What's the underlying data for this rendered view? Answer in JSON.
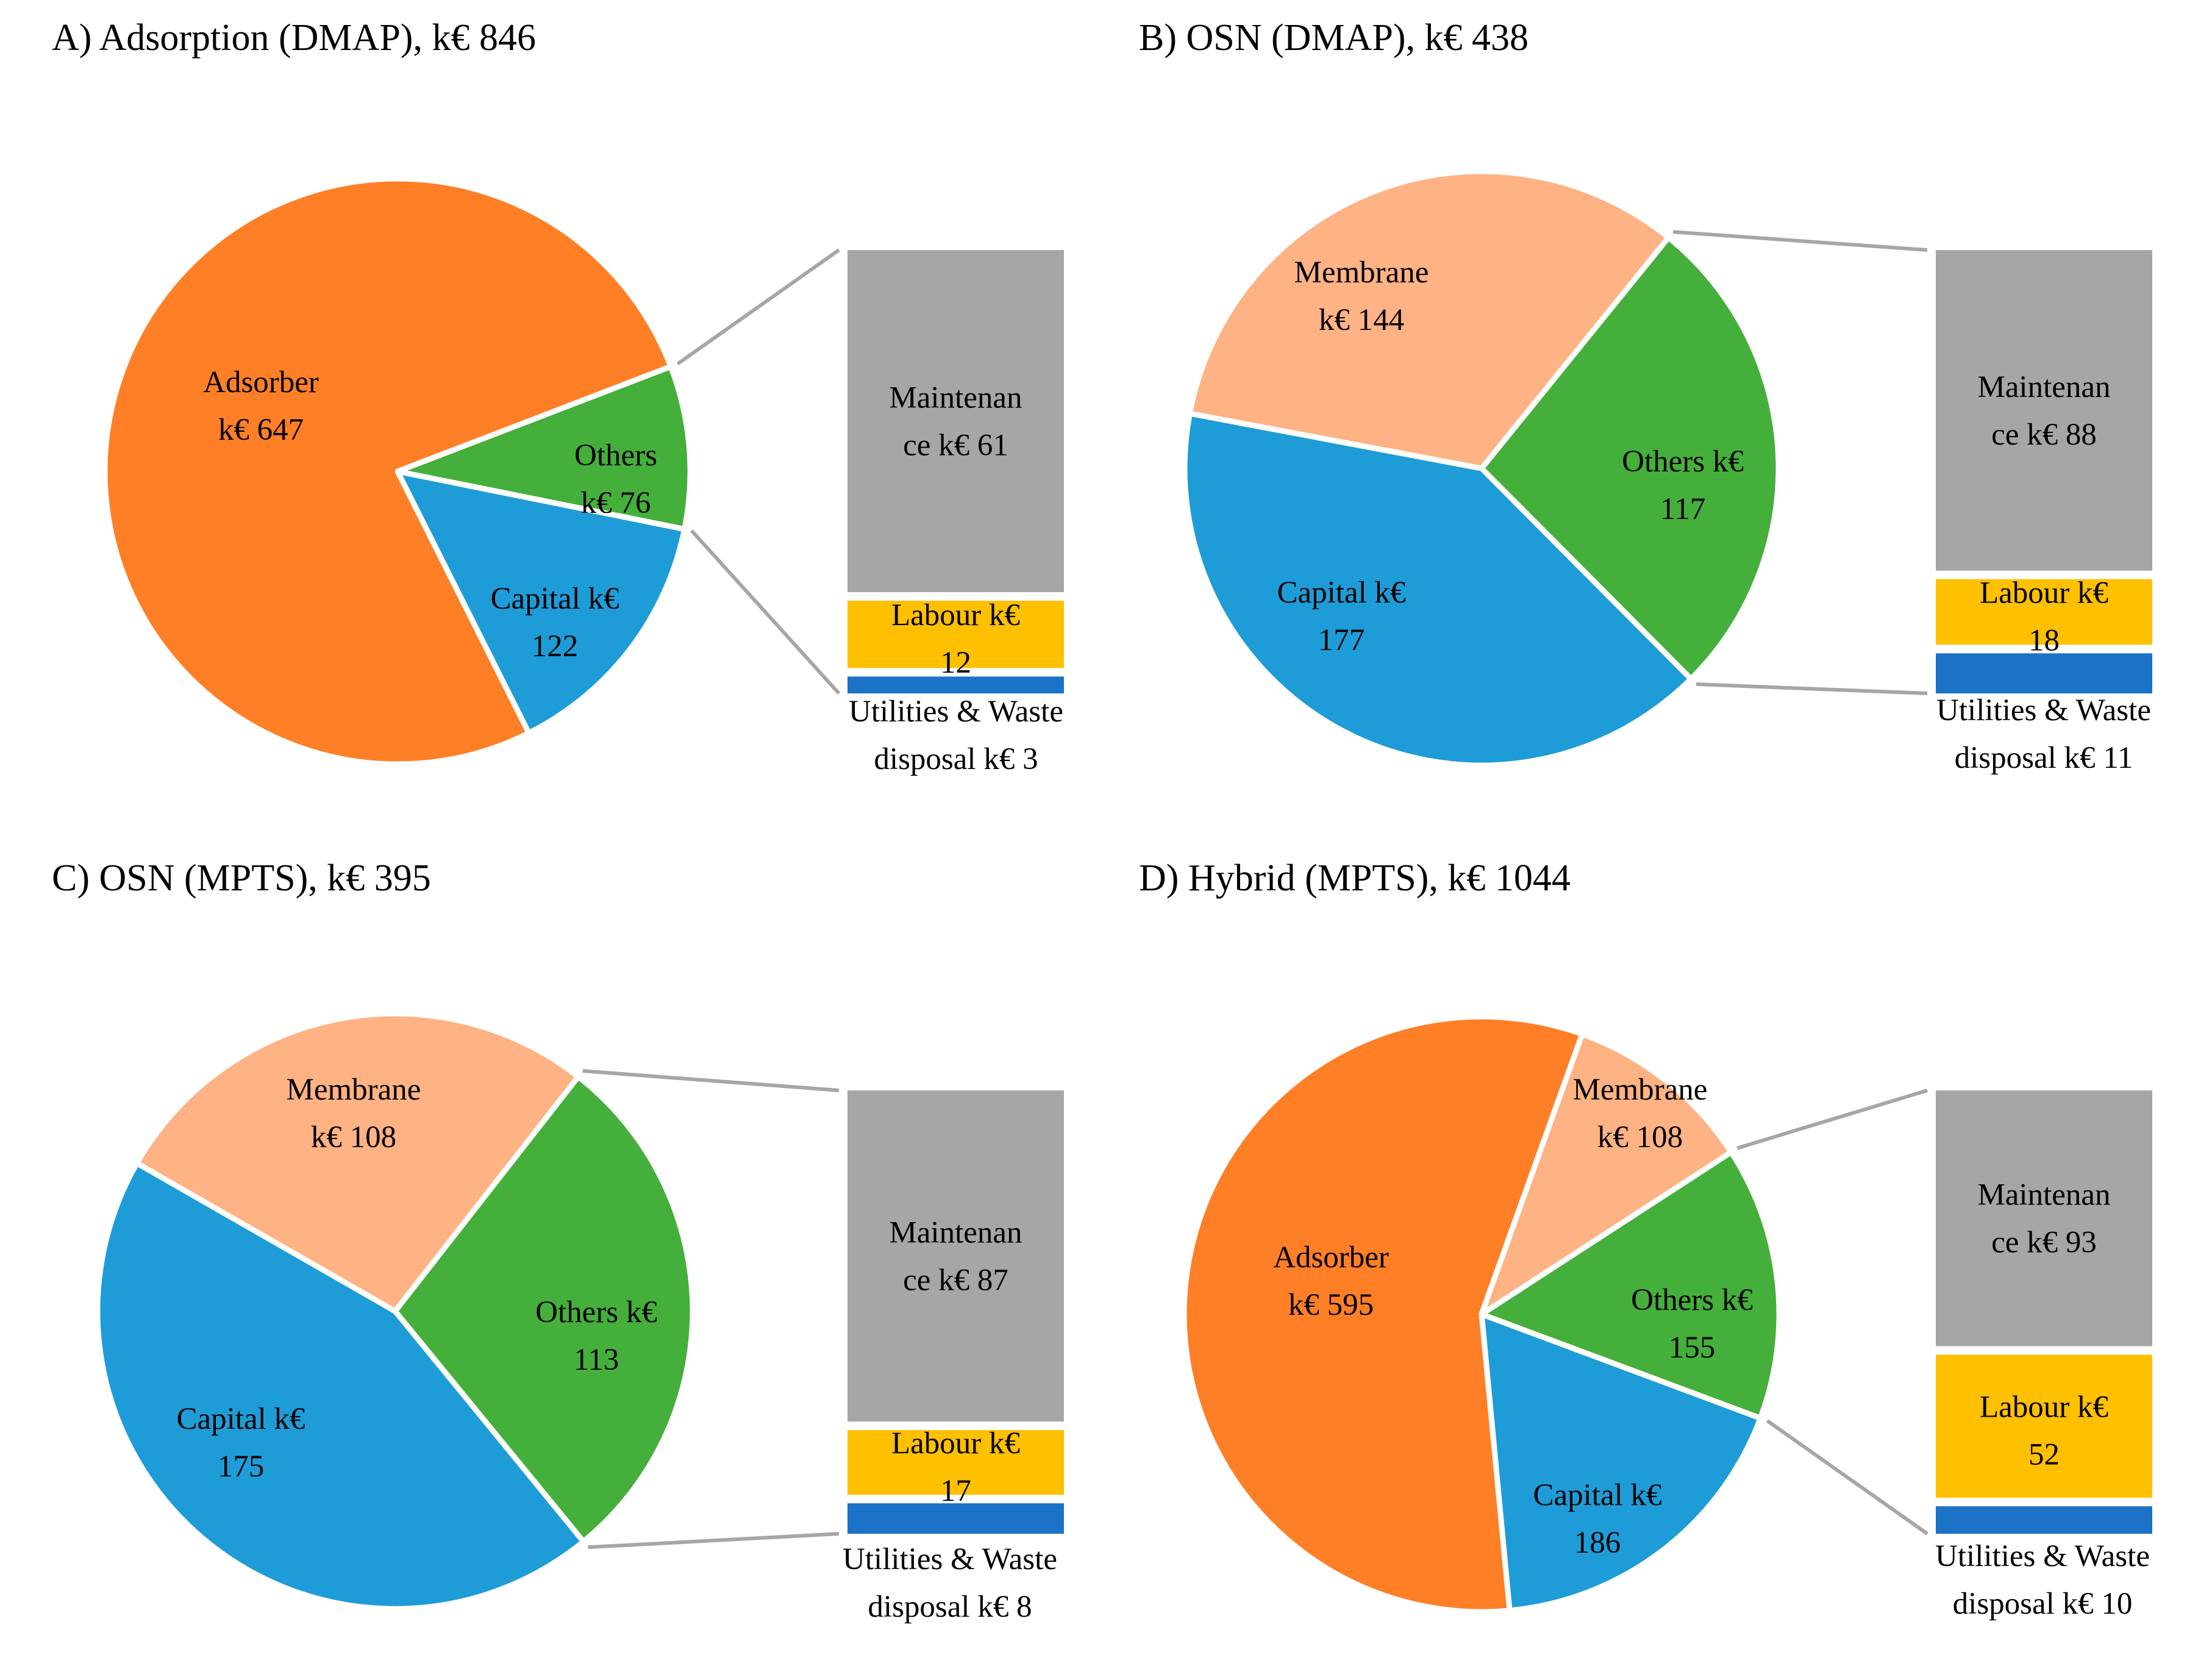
{
  "colors": {
    "adsorber": "#FF7F27",
    "membrane": "#FFB283",
    "others": "#45AF3B",
    "capital": "#1E9CD7",
    "maintenance": "#A6A6A6",
    "labour": "#FFC000",
    "utilities": "#1C72C6",
    "connector": "#A6A6A6"
  },
  "chart_data": [
    {
      "type": "pie",
      "title": "A) Adsorption (DMAP), k€ 846",
      "slices": [
        {
          "key": "others",
          "name": "Others",
          "value": 76,
          "label": [
            "Others",
            "k€ 76"
          ]
        },
        {
          "key": "capital",
          "name": "Capital",
          "value": 122,
          "label": [
            "Capital k€",
            "122"
          ]
        },
        {
          "key": "adsorber",
          "name": "Adsorber",
          "value": 647,
          "label": [
            "Adsorber",
            "k€ 647"
          ]
        }
      ],
      "breakdown_of": "Others",
      "bar": [
        {
          "key": "maintenance",
          "name": "Maintenance",
          "value": 61,
          "label": [
            "Maintenan",
            "ce k€ 61"
          ]
        },
        {
          "key": "labour",
          "name": "Labour",
          "value": 12,
          "label": [
            "Labour k€",
            "12"
          ]
        },
        {
          "key": "utilities",
          "name": "Utilities & Waste disposal",
          "value": 3,
          "label": [
            "Utilities & Waste",
            "disposal k€ 3"
          ]
        }
      ]
    },
    {
      "type": "pie",
      "title": "B) OSN (DMAP), k€ 438",
      "slices": [
        {
          "key": "others",
          "name": "Others",
          "value": 117,
          "label": [
            "Others k€",
            "117"
          ]
        },
        {
          "key": "capital",
          "name": "Capital",
          "value": 177,
          "label": [
            "Capital k€",
            "177"
          ]
        },
        {
          "key": "membrane",
          "name": "Membrane",
          "value": 144,
          "label": [
            "Membrane",
            "k€ 144"
          ]
        }
      ],
      "breakdown_of": "Others",
      "bar": [
        {
          "key": "maintenance",
          "name": "Maintenance",
          "value": 88,
          "label": [
            "Maintenan",
            "ce k€ 88"
          ]
        },
        {
          "key": "labour",
          "name": "Labour",
          "value": 18,
          "label": [
            "Labour k€",
            "18"
          ]
        },
        {
          "key": "utilities",
          "name": "Utilities & Waste disposal",
          "value": 11,
          "label": [
            "Utilities & Waste",
            "disposal k€ 11"
          ]
        }
      ]
    },
    {
      "type": "pie",
      "title": "C) OSN (MPTS), k€ 395",
      "slices": [
        {
          "key": "others",
          "name": "Others",
          "value": 113,
          "label": [
            "Others k€",
            "113"
          ]
        },
        {
          "key": "capital",
          "name": "Capital",
          "value": 175,
          "label": [
            "Capital k€",
            "175"
          ]
        },
        {
          "key": "membrane",
          "name": "Membrane",
          "value": 108,
          "label": [
            "Membrane",
            "k€ 108"
          ]
        }
      ],
      "breakdown_of": "Others",
      "bar": [
        {
          "key": "maintenance",
          "name": "Maintenance",
          "value": 87,
          "label": [
            "Maintenan",
            "ce k€ 87"
          ]
        },
        {
          "key": "labour",
          "name": "Labour",
          "value": 17,
          "label": [
            "Labour k€",
            "17"
          ]
        },
        {
          "key": "utilities",
          "name": "Utilities & Waste disposal",
          "value": 8,
          "label": [
            "Utilities & Waste",
            "disposal k€ 8"
          ]
        }
      ]
    },
    {
      "type": "pie",
      "title": "D) Hybrid (MPTS), k€ 1044",
      "slices": [
        {
          "key": "others",
          "name": "Others",
          "value": 155,
          "label": [
            "Others k€",
            "155"
          ]
        },
        {
          "key": "capital",
          "name": "Capital",
          "value": 186,
          "label": [
            "Capital k€",
            "186"
          ]
        },
        {
          "key": "adsorber",
          "name": "Adsorber",
          "value": 595,
          "label": [
            "Adsorber",
            "k€ 595"
          ]
        },
        {
          "key": "membrane",
          "name": "Membrane",
          "value": 108,
          "label": [
            "Membrane",
            "k€ 108"
          ]
        }
      ],
      "breakdown_of": "Others",
      "bar": [
        {
          "key": "maintenance",
          "name": "Maintenance",
          "value": 93,
          "label": [
            "Maintenan",
            "ce k€ 93"
          ]
        },
        {
          "key": "labour",
          "name": "Labour",
          "value": 52,
          "label": [
            "Labour k€",
            "52"
          ]
        },
        {
          "key": "utilities",
          "name": "Utilities & Waste disposal",
          "value": 10,
          "label": [
            "Utilities & Waste",
            "disposal k€ 10"
          ]
        }
      ]
    }
  ]
}
